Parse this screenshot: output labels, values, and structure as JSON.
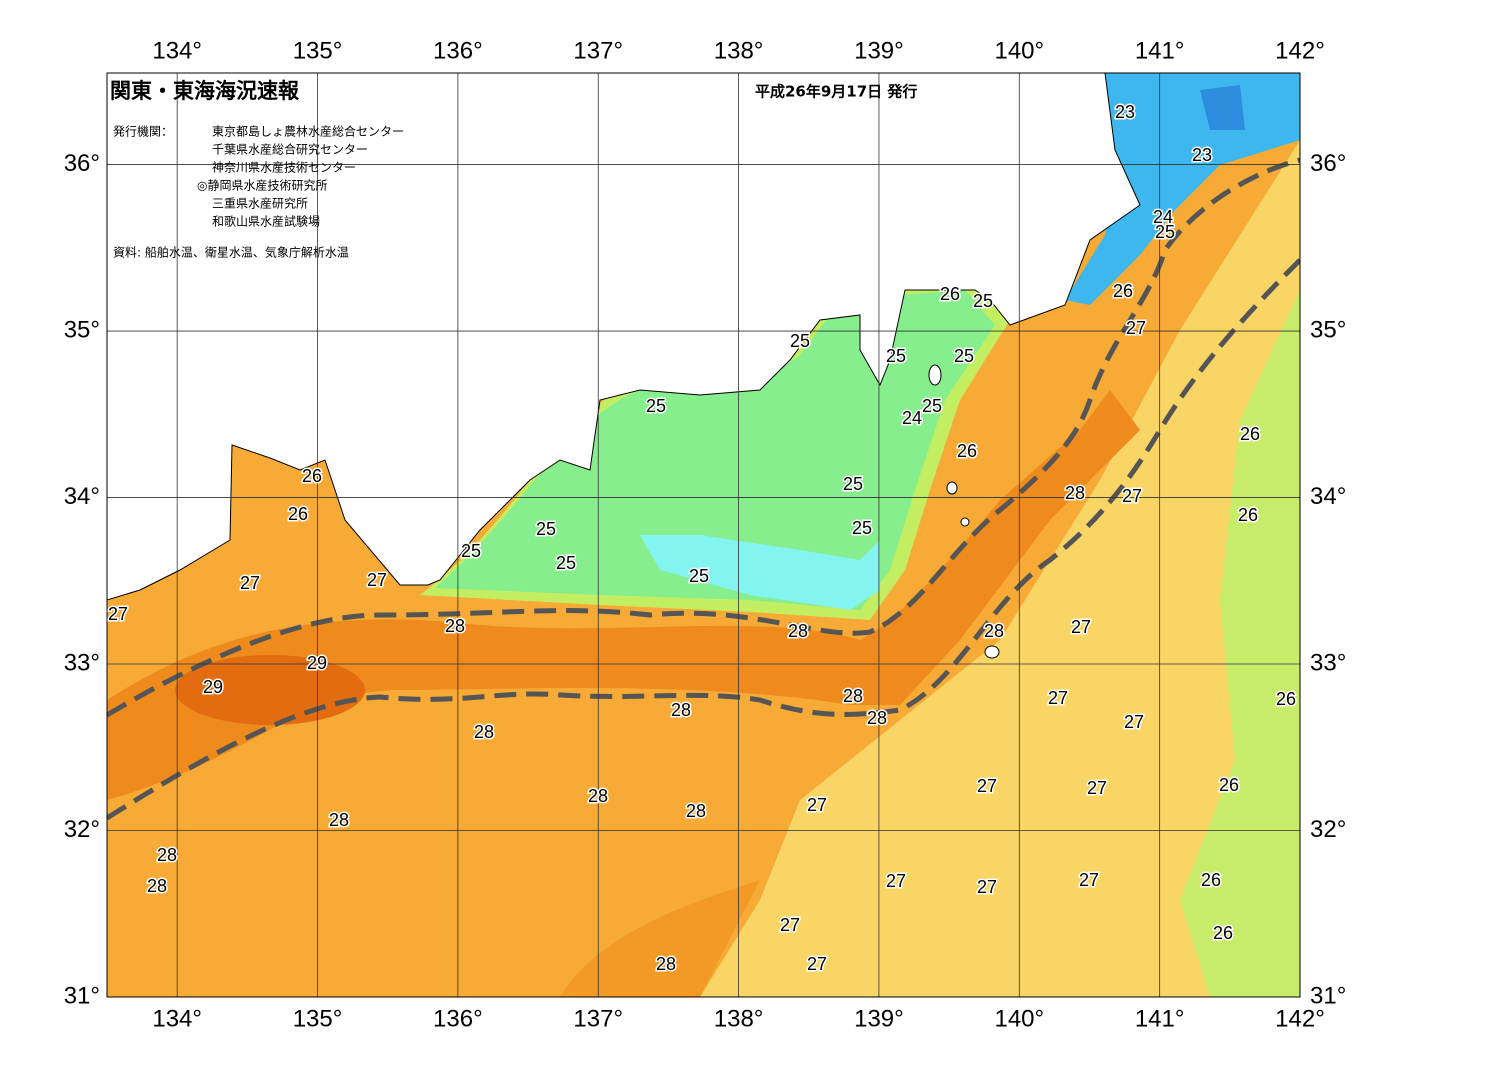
{
  "header": {
    "title": "関東・東海海況速報",
    "date": "平成26年9月17日 発行",
    "issuer_label": "発行機関：",
    "issuers": [
      "東京都島しょ農林水産総合センター",
      "千葉県水産総合研究センター",
      "神奈川県水産技術センター",
      "◎静岡県水産技術研究所",
      "三重県水産研究所",
      "和歌山県水産試験場"
    ],
    "source": "資料: 船舶水温、衛星水温、気象庁解析水温"
  },
  "map": {
    "xlim": [
      133.5,
      142
    ],
    "ylim": [
      31,
      36.55
    ],
    "xticks": [
      {
        "value": 134,
        "label": "134°"
      },
      {
        "value": 135,
        "label": "135°"
      },
      {
        "value": 136,
        "label": "136°"
      },
      {
        "value": 137,
        "label": "137°"
      },
      {
        "value": 138,
        "label": "138°"
      },
      {
        "value": 139,
        "label": "139°"
      },
      {
        "value": 140,
        "label": "140°"
      },
      {
        "value": 141,
        "label": "141°"
      },
      {
        "value": 142,
        "label": "142°"
      }
    ],
    "yticks": [
      {
        "value": 31,
        "label": "31°"
      },
      {
        "value": 32,
        "label": "32°"
      },
      {
        "value": 33,
        "label": "33°"
      },
      {
        "value": 34,
        "label": "34°"
      },
      {
        "value": 35,
        "label": "35°"
      },
      {
        "value": 36,
        "label": "36°"
      }
    ],
    "contour_labels": [
      23,
      23,
      24,
      25,
      26,
      25,
      26,
      27,
      25,
      25,
      25,
      25,
      25,
      24,
      26,
      26,
      25,
      28,
      27,
      26,
      25,
      26,
      26,
      25,
      25,
      25,
      25,
      27,
      27,
      27,
      28,
      28,
      28,
      27,
      29,
      29,
      28,
      28,
      28,
      27,
      27,
      26,
      28,
      27,
      27,
      26,
      28,
      28,
      27,
      28,
      28,
      28,
      27,
      27,
      27,
      26,
      26,
      27,
      27,
      28
    ]
  }
}
